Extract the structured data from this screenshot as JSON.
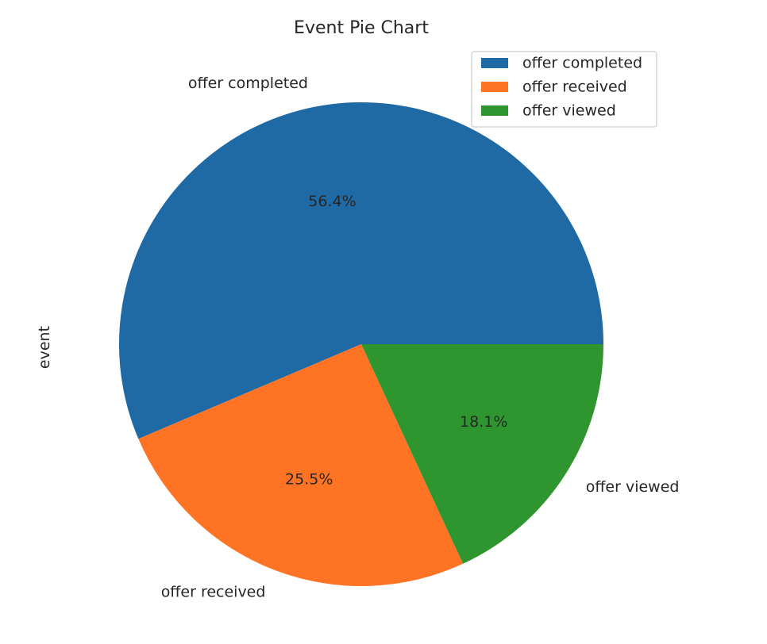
{
  "chart_data": {
    "type": "pie",
    "title": "Event Pie Chart",
    "ylabel": "event",
    "categories": [
      "offer completed",
      "offer received",
      "offer viewed"
    ],
    "values": [
      56.4,
      25.5,
      18.1
    ],
    "percent_labels": [
      "56.4%",
      "25.5%",
      "18.1%"
    ],
    "colors": [
      "#1f6aa5",
      "#ff7424",
      "#2f962f"
    ],
    "start_angle_deg": 0,
    "direction": "counterclockwise",
    "legend": {
      "placement": "top-right",
      "entries": [
        "offer completed",
        "offer received",
        "offer viewed"
      ]
    }
  }
}
